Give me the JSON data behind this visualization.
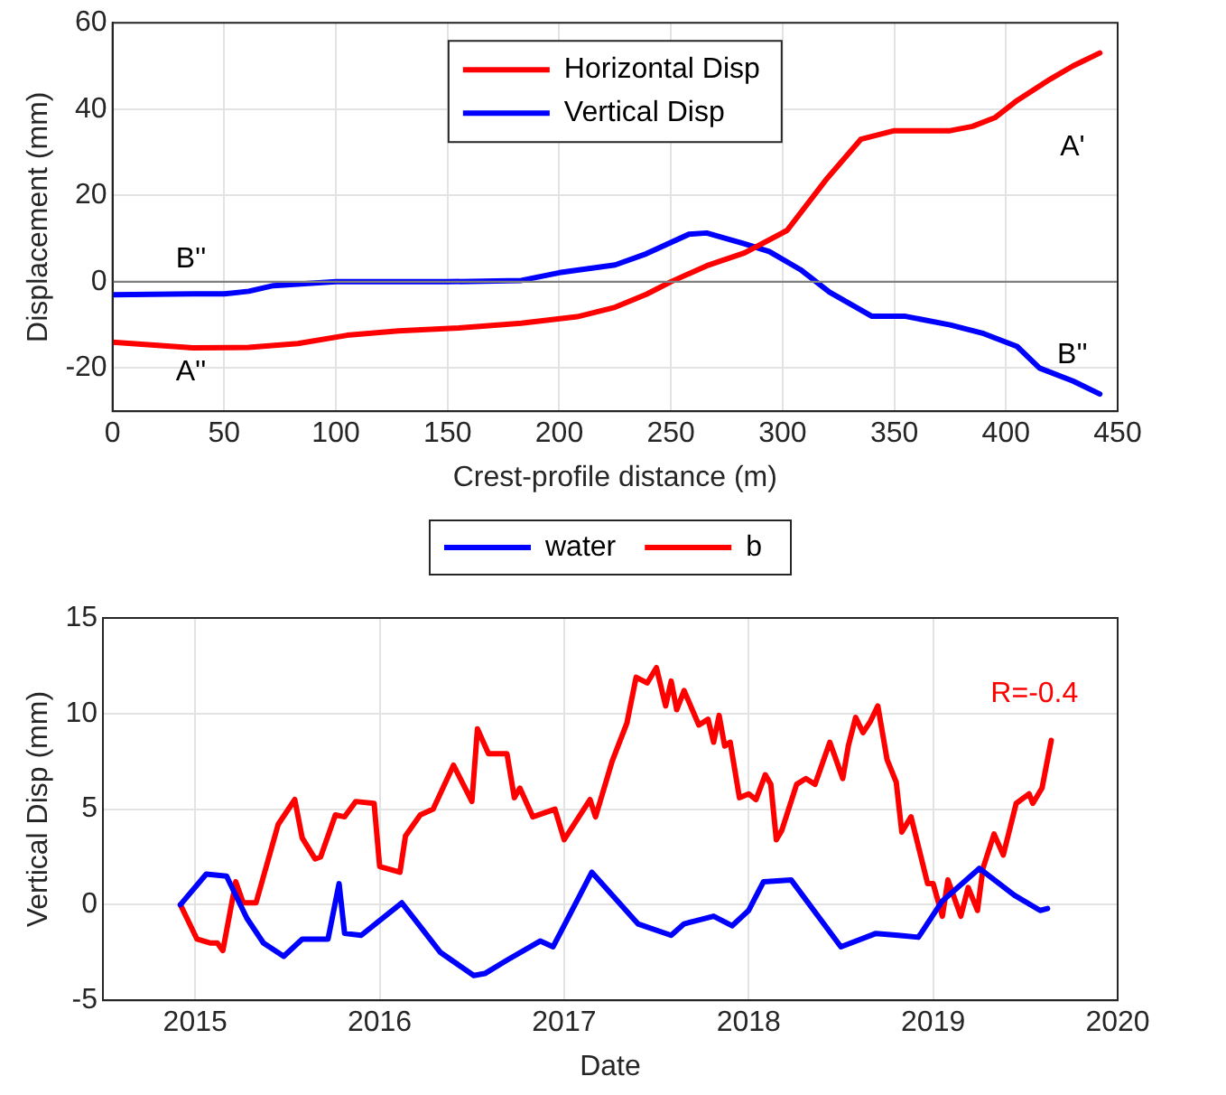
{
  "chart_data": [
    {
      "type": "line",
      "xlabel": "Crest-profile distance (m)",
      "ylabel": "Displacement (mm)",
      "xlim": [
        0,
        450
      ],
      "xticks": [
        0,
        50,
        100,
        150,
        200,
        250,
        300,
        350,
        400,
        450
      ],
      "ylim": [
        -30,
        60
      ],
      "yticks": [
        -20,
        0,
        20,
        40,
        60
      ],
      "grid": true,
      "legend": "top center",
      "marker": "none",
      "line_style": "solid",
      "ref_lines": [
        {
          "axis": "y",
          "value": 0,
          "color": "#7f7f7f"
        }
      ],
      "annotations": [
        "A''",
        "B''",
        "A'",
        "B''"
      ],
      "series": [
        {
          "name": "Horizontal Disp",
          "color": "#ff0000",
          "x": [
            0,
            36,
            61,
            83,
            105,
            128,
            155,
            183,
            208,
            225,
            239,
            250,
            266,
            283,
            302,
            320,
            335,
            350,
            375,
            385,
            395,
            405,
            420,
            430,
            442
          ],
          "values": [
            -14,
            -15.3,
            -15.2,
            -14.3,
            -12.4,
            -11.4,
            -10.7,
            -9.6,
            -8.1,
            -5.9,
            -2.9,
            0,
            3.7,
            6.7,
            11.9,
            24,
            33,
            35,
            35,
            36,
            38,
            42,
            47,
            50,
            53
          ]
        },
        {
          "name": "Vertical Disp",
          "color": "#0000ff",
          "x": [
            0,
            36,
            50,
            61,
            72,
            100,
            150,
            183,
            200,
            225,
            239,
            258,
            266,
            283,
            294,
            308,
            321,
            340,
            355,
            375,
            390,
            405,
            415,
            430,
            442
          ],
          "values": [
            -3,
            -2.8,
            -2.8,
            -2.2,
            -0.9,
            0,
            0,
            0.3,
            2.1,
            3.9,
            6.5,
            11,
            11.3,
            8.8,
            7,
            2.8,
            -2.4,
            -8,
            -8,
            -10,
            -12,
            -15,
            -20,
            -23,
            -26
          ]
        }
      ]
    },
    {
      "type": "line",
      "xlabel": "Date",
      "ylabel": "Vertical Disp (mm)",
      "xlim": [
        2014.5,
        2020
      ],
      "xticks": [
        2015,
        2016,
        2017,
        2018,
        2019,
        2020
      ],
      "ylim": [
        -5,
        15
      ],
      "yticks": [
        -5,
        0,
        5,
        10,
        15
      ],
      "grid": true,
      "legend": "top",
      "marker": "none",
      "line_style": "solid",
      "annotations": [
        "R=-0.4"
      ],
      "series": [
        {
          "name": "water",
          "color": "#0000ff",
          "x": [
            2014.92,
            2015.06,
            2015.17,
            2015.28,
            2015.37,
            2015.48,
            2015.58,
            2015.72,
            2015.78,
            2015.81,
            2015.9,
            2016.12,
            2016.33,
            2016.51,
            2016.57,
            2016.69,
            2016.87,
            2016.94,
            2017.15,
            2017.4,
            2017.58,
            2017.65,
            2017.81,
            2017.91,
            2018.0,
            2018.08,
            2018.23,
            2018.5,
            2018.69,
            2018.81,
            2018.92,
            2019.05,
            2019.25,
            2019.44,
            2019.58,
            2019.62
          ],
          "values": [
            0,
            1.6,
            1.5,
            -0.7,
            -2,
            -2.7,
            -1.8,
            -1.8,
            1.1,
            -1.5,
            -1.6,
            0.1,
            -2.5,
            -3.7,
            -3.6,
            -2.9,
            -1.9,
            -2.2,
            1.7,
            -1,
            -1.6,
            -1,
            -0.6,
            -1.1,
            -0.3,
            1.2,
            1.3,
            -2.2,
            -1.5,
            -1.6,
            -1.7,
            0.2,
            1.9,
            0.5,
            -0.3,
            -0.2
          ]
        },
        {
          "name": "b",
          "color": "#ff0000",
          "x": [
            2014.92,
            2015.01,
            2015.08,
            2015.12,
            2015.15,
            2015.22,
            2015.26,
            2015.33,
            2015.45,
            2015.54,
            2015.58,
            2015.65,
            2015.68,
            2015.76,
            2015.81,
            2015.87,
            2015.97,
            2016.0,
            2016.11,
            2016.14,
            2016.22,
            2016.29,
            2016.4,
            2016.5,
            2016.53,
            2016.59,
            2016.69,
            2016.73,
            2016.76,
            2016.83,
            2016.95,
            2017.0,
            2017.14,
            2017.17,
            2017.26,
            2017.34,
            2017.39,
            2017.45,
            2017.5,
            2017.55,
            2017.58,
            2017.61,
            2017.65,
            2017.73,
            2017.78,
            2017.81,
            2017.84,
            2017.87,
            2017.9,
            2017.95,
            2018.0,
            2018.04,
            2018.09,
            2018.12,
            2018.15,
            2018.18,
            2018.26,
            2018.31,
            2018.36,
            2018.44,
            2018.51,
            2018.54,
            2018.58,
            2018.62,
            2018.66,
            2018.7,
            2018.75,
            2018.8,
            2018.83,
            2018.88,
            2018.97,
            2019.0,
            2019.05,
            2019.08,
            2019.15,
            2019.19,
            2019.24,
            2019.27,
            2019.33,
            2019.38,
            2019.45,
            2019.52,
            2019.54,
            2019.59,
            2019.64
          ],
          "values": [
            0,
            -1.8,
            -2,
            -2,
            -2.4,
            1.2,
            0.1,
            0.1,
            4.2,
            5.5,
            3.5,
            2.4,
            2.5,
            4.7,
            4.6,
            5.4,
            5.3,
            2,
            1.7,
            3.6,
            4.7,
            5,
            7.3,
            5.4,
            9.2,
            7.9,
            7.9,
            5.6,
            6.1,
            4.6,
            5,
            3.4,
            5.5,
            4.6,
            7.5,
            9.5,
            11.9,
            11.6,
            12.4,
            10.4,
            11.7,
            10.2,
            11.2,
            9.4,
            9.7,
            8.5,
            9.9,
            8.3,
            8.5,
            5.6,
            5.8,
            5.5,
            6.8,
            6.3,
            3.4,
            3.9,
            6.3,
            6.6,
            6.3,
            8.5,
            6.6,
            8.3,
            9.8,
            9,
            9.6,
            10.4,
            7.6,
            6.4,
            3.8,
            4.6,
            1.1,
            1.1,
            -0.6,
            1.3,
            -0.6,
            0.9,
            -0.3,
            1.9,
            3.7,
            2.6,
            5.3,
            5.8,
            5.3,
            6.1,
            8.6
          ]
        }
      ]
    }
  ]
}
